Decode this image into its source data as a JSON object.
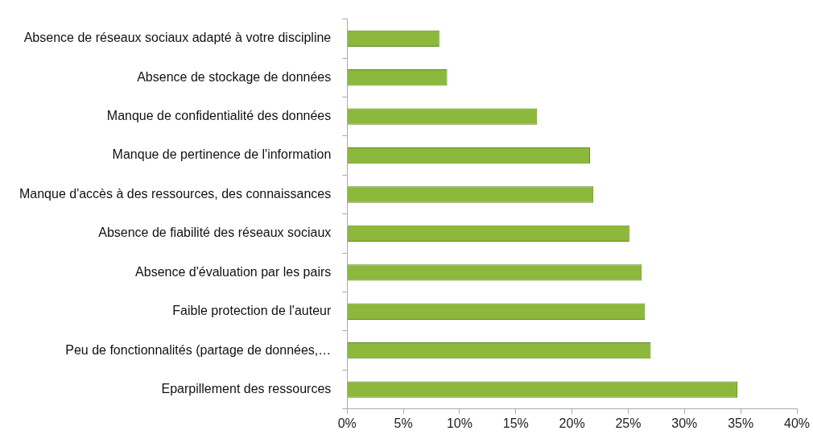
{
  "chart_data": {
    "type": "bar",
    "orientation": "horizontal",
    "categories": [
      "Absence de réseaux sociaux adapté à votre discipline",
      "Absence de stockage de données",
      "Manque de confidentialité des données",
      "Manque de pertinence de l'information",
      "Manque d'accès à des ressources, des connaissances",
      "Absence de fiabilité des réseaux sociaux",
      "Absence d'évaluation par les pairs",
      "Faible protection de l'auteur",
      "Peu de fonctionnalités (partage de données,…",
      "Eparpillement des ressources"
    ],
    "values": [
      8.2,
      8.9,
      16.9,
      21.6,
      21.9,
      25.1,
      26.2,
      26.5,
      27.0,
      34.7
    ],
    "color": "#8cb83c",
    "xlim": [
      0,
      40
    ],
    "xticks": [
      {
        "value": 0,
        "label": "0%"
      },
      {
        "value": 5,
        "label": "5%"
      },
      {
        "value": 10,
        "label": "10%"
      },
      {
        "value": 15,
        "label": "15%"
      },
      {
        "value": 20,
        "label": "20%"
      },
      {
        "value": 25,
        "label": "25%"
      },
      {
        "value": 30,
        "label": "30%"
      },
      {
        "value": 35,
        "label": "35%"
      },
      {
        "value": 40,
        "label": "40%"
      }
    ]
  }
}
